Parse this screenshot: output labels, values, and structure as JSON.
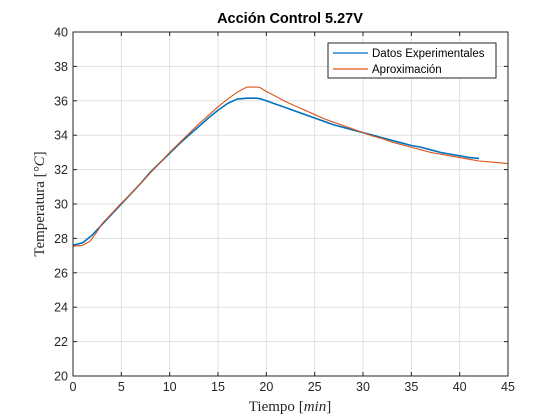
{
  "chart_data": {
    "type": "line",
    "title": "Acción Control 5.27V",
    "xlabel_text": "Tiempo",
    "xlabel_unit": "min",
    "ylabel_text": "Temperatura",
    "ylabel_unit": "°C",
    "xlim": [
      0,
      45
    ],
    "ylim": [
      20,
      40
    ],
    "x_ticks": [
      0,
      5,
      10,
      15,
      20,
      25,
      30,
      35,
      40,
      45
    ],
    "y_ticks": [
      20,
      22,
      24,
      26,
      28,
      30,
      32,
      34,
      36,
      38,
      40
    ],
    "grid": true,
    "legend_position": "top-right",
    "series": [
      {
        "name": "Datos Experimentales",
        "color": "#0072BD",
        "x": [
          0,
          1,
          2,
          3,
          4,
          5,
          6,
          7,
          8,
          9,
          10,
          11,
          12,
          13,
          14,
          15,
          16,
          17,
          18,
          19,
          19.5,
          20,
          21,
          22,
          23,
          24,
          25,
          26,
          27,
          28,
          29,
          30,
          31,
          32,
          33,
          34,
          35,
          36,
          37,
          38,
          39,
          40,
          41,
          42
        ],
        "y": [
          27.6,
          27.75,
          28.2,
          28.8,
          29.4,
          30.0,
          30.6,
          31.2,
          31.85,
          32.4,
          32.95,
          33.5,
          34.0,
          34.5,
          35.0,
          35.45,
          35.85,
          36.1,
          36.15,
          36.15,
          36.1,
          36.0,
          35.8,
          35.6,
          35.4,
          35.2,
          35.0,
          34.8,
          34.6,
          34.45,
          34.3,
          34.15,
          34.0,
          33.85,
          33.7,
          33.55,
          33.4,
          33.3,
          33.15,
          33.0,
          32.9,
          32.8,
          32.7,
          32.65
        ]
      },
      {
        "name": "Aproximación",
        "color": "#D95319",
        "x": [
          0,
          1,
          1.8,
          2.5,
          3,
          4,
          5,
          6,
          7,
          8,
          9,
          10,
          11,
          12,
          13,
          14,
          15,
          16,
          17,
          18,
          18.5,
          19,
          19.3,
          20,
          21,
          22,
          23,
          24,
          25,
          26,
          27,
          28,
          29,
          30,
          31,
          32,
          33,
          34,
          35,
          36,
          37,
          38,
          39,
          40,
          41,
          42,
          43,
          44,
          45
        ],
        "y": [
          27.55,
          27.6,
          27.85,
          28.4,
          28.85,
          29.45,
          30.05,
          30.6,
          31.2,
          31.8,
          32.4,
          33.0,
          33.55,
          34.1,
          34.65,
          35.15,
          35.65,
          36.1,
          36.5,
          36.8,
          36.8,
          36.8,
          36.78,
          36.55,
          36.25,
          35.95,
          35.7,
          35.45,
          35.2,
          34.95,
          34.75,
          34.55,
          34.35,
          34.15,
          33.95,
          33.8,
          33.6,
          33.45,
          33.3,
          33.15,
          33.0,
          32.9,
          32.8,
          32.7,
          32.6,
          32.5,
          32.45,
          32.4,
          32.35
        ]
      }
    ]
  }
}
